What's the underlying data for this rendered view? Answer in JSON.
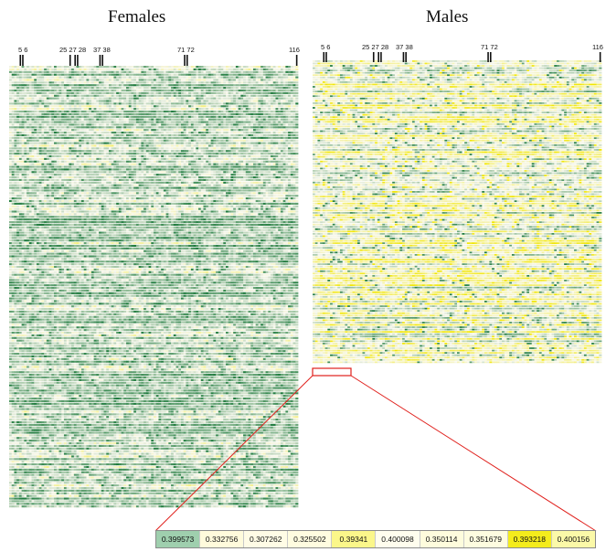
{
  "panels": [
    {
      "id": "female",
      "title": "Females",
      "rows": 168,
      "columns": 116,
      "seed": 1771,
      "marker_labels": [
        "5 6",
        "25 27 28",
        "37 38",
        "71 72",
        "116"
      ],
      "marker_positions": [
        5,
        6,
        25,
        27,
        28,
        37,
        38,
        71,
        72,
        116
      ]
    },
    {
      "id": "male",
      "title": "Males",
      "rows": 130,
      "columns": 116,
      "seed": 2903,
      "marker_labels": [
        "5 6",
        "25 27 28",
        "37 38",
        "71 72",
        "116"
      ],
      "marker_positions": [
        5,
        6,
        25,
        27,
        28,
        37,
        38,
        71,
        72,
        116
      ]
    }
  ],
  "color_scale": {
    "low": "#1e7a3c",
    "mid": "#f6f6e8",
    "high": "#f1e600",
    "separator": "#ffffff",
    "callout": "#e0201c"
  },
  "zoomed_values": [
    "0.399573",
    "0.332756",
    "0.307262",
    "0.325502",
    "0.39341",
    "0.400098",
    "0.350114",
    "0.351679",
    "0.393218",
    "0.400156"
  ],
  "zoomed_colors": [
    "#9fcfae",
    "#fffbdc",
    "#fffce6",
    "#fffce0",
    "#fbf78a",
    "#fffdee",
    "#fefcdd",
    "#fefce0",
    "#f4ec1c",
    "#fbf9a8"
  ],
  "chart_data": [
    {
      "type": "heatmap",
      "title": "Females",
      "x_markers": [
        5,
        6,
        25,
        27,
        28,
        37,
        38,
        71,
        72,
        116
      ],
      "n_columns": 116,
      "color_scale": [
        "green",
        "white",
        "yellow"
      ],
      "grid": false
    },
    {
      "type": "heatmap",
      "title": "Males",
      "x_markers": [
        5,
        6,
        25,
        27,
        28,
        37,
        38,
        71,
        72,
        116
      ],
      "n_columns": 116,
      "color_scale": [
        "green",
        "white",
        "yellow"
      ],
      "grid": false,
      "zoomed_row_values": [
        0.399573,
        0.332756,
        0.307262,
        0.325502,
        0.39341,
        0.400098,
        0.350114,
        0.351679,
        0.393218,
        0.400156
      ]
    }
  ]
}
